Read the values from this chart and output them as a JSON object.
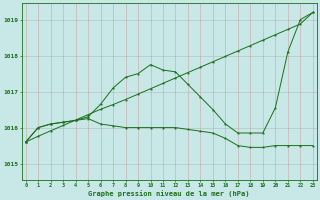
{
  "title": "Graphe pression niveau de la mer (hPa)",
  "xlabel_ticks": [
    0,
    1,
    2,
    3,
    4,
    5,
    6,
    7,
    8,
    9,
    10,
    11,
    12,
    13,
    14,
    15,
    16,
    17,
    18,
    19,
    20,
    21,
    22,
    23
  ],
  "ylim": [
    1014.55,
    1019.45
  ],
  "yticks": [
    1015,
    1016,
    1017,
    1018,
    1019
  ],
  "bg_color": "#c8e8e8",
  "line_color": "#1a6e1a",
  "grid_color": "#b0c8c8",
  "series_peaked": [
    1015.6,
    1016.0,
    1016.1,
    1016.15,
    1016.2,
    1016.3,
    1016.65,
    1017.1,
    1017.4,
    1017.5,
    1017.75,
    1017.6,
    1017.55,
    1017.2,
    1016.85,
    1016.5,
    1016.1,
    1015.85,
    1015.85,
    1015.85,
    1016.55,
    1018.1,
    1019.0,
    1019.2
  ],
  "series_flat": [
    1015.6,
    1016.0,
    1016.1,
    1016.15,
    1016.2,
    1016.25,
    1016.1,
    1016.05,
    1016.0,
    1016.0,
    1016.0,
    1016.0,
    1016.0,
    1015.95,
    1015.9,
    1015.85,
    1015.7,
    1015.5,
    1015.45,
    1015.45,
    1015.5,
    1015.5,
    1015.5,
    1015.5
  ],
  "series_linear": [
    1015.6,
    1015.76,
    1015.91,
    1016.06,
    1016.21,
    1016.36,
    1016.51,
    1016.64,
    1016.78,
    1016.93,
    1017.08,
    1017.23,
    1017.38,
    1017.53,
    1017.68,
    1017.83,
    1017.98,
    1018.13,
    1018.28,
    1018.43,
    1018.58,
    1018.73,
    1018.88,
    1019.2
  ]
}
